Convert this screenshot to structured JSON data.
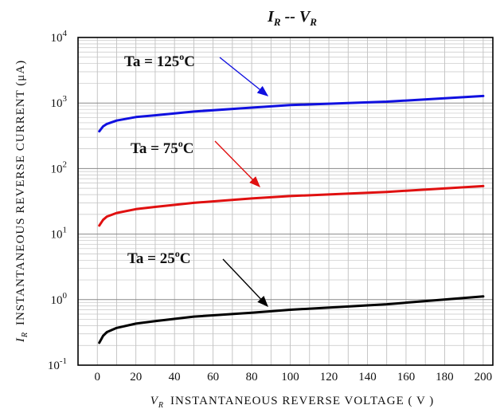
{
  "chart_data": {
    "type": "line",
    "title": {
      "main": "I",
      "main_sub": "R",
      "separator": " -- ",
      "second": "V",
      "second_sub": "R"
    },
    "xlabel": {
      "symbol": "V",
      "sub": "R",
      "text": "INSTANTANEOUS  REVERSE  VOLTAGE ( V )"
    },
    "ylabel": {
      "symbol": "I",
      "sub": "R",
      "text": "INSTANTANEOUS  REVERSE  CURRENT  (μA)"
    },
    "xlim": [
      -10,
      205
    ],
    "ylim": [
      0.1,
      10000
    ],
    "yscale": "log",
    "grid": true,
    "x_ticks": [
      0,
      20,
      40,
      60,
      80,
      100,
      120,
      140,
      160,
      180,
      200
    ],
    "y_ticks": [
      {
        "value": 0.1,
        "base": "10",
        "exp": "-1"
      },
      {
        "value": 1,
        "base": "10",
        "exp": "0"
      },
      {
        "value": 10,
        "base": "10",
        "exp": "1"
      },
      {
        "value": 100,
        "base": "10",
        "exp": "2"
      },
      {
        "value": 1000,
        "base": "10",
        "exp": "3"
      },
      {
        "value": 10000,
        "base": "10",
        "exp": "4"
      }
    ],
    "series": [
      {
        "name": "Ta = 125°C",
        "label_main": "Ta = 125",
        "label_sup": "o",
        "label_unit": "C",
        "color": "#1010e0",
        "x": [
          1,
          3,
          5,
          10,
          20,
          30,
          50,
          80,
          100,
          150,
          200
        ],
        "y": [
          370,
          440,
          480,
          540,
          610,
          650,
          740,
          850,
          930,
          1050,
          1280
        ]
      },
      {
        "name": "Ta = 75°C",
        "label_main": "Ta = 75",
        "label_sup": "o",
        "label_unit": "C",
        "color": "#e01010",
        "x": [
          1,
          3,
          5,
          10,
          20,
          30,
          50,
          80,
          100,
          150,
          200
        ],
        "y": [
          13.5,
          16.5,
          18.5,
          21,
          24,
          26,
          30,
          35,
          38,
          44,
          54
        ]
      },
      {
        "name": "Ta = 25°C",
        "label_main": "Ta = 25",
        "label_sup": "o",
        "label_unit": "C",
        "color": "#000000",
        "x": [
          1,
          3,
          5,
          10,
          20,
          30,
          50,
          80,
          100,
          150,
          200
        ],
        "y": [
          0.22,
          0.28,
          0.32,
          0.37,
          0.43,
          0.47,
          0.55,
          0.63,
          0.7,
          0.85,
          1.12
        ]
      }
    ]
  }
}
